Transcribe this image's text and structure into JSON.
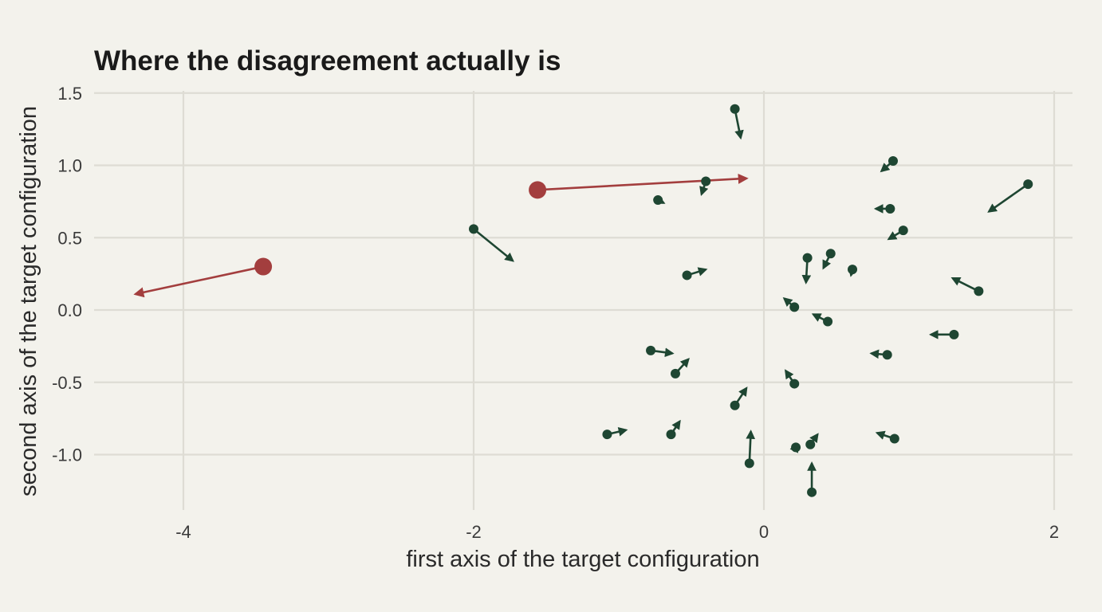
{
  "chart_data": {
    "type": "scatter",
    "title": "Where the disagreement actually is",
    "xlabel": "first axis of the target configuration",
    "ylabel": "second axis of the target configuration",
    "xlim": [
      -4.6,
      2.1
    ],
    "ylim": [
      -1.3,
      1.5
    ],
    "xticks": [
      -4,
      -2,
      0,
      2
    ],
    "xtick_labels": [
      "-4",
      "-2",
      "0",
      "2"
    ],
    "yticks": [
      1.5,
      1.0,
      0.5,
      0.0,
      -0.5,
      -1.0
    ],
    "ytick_labels": [
      "1.5",
      "1.0",
      "0.5",
      "0.0",
      "-0.5",
      "-1.0"
    ],
    "grid": true,
    "colors": {
      "normal": "#1e4632",
      "highlight": "#a33e3e",
      "grid": "#dedcd4",
      "background": "#f3f2ec"
    },
    "points": [
      {
        "x": -3.45,
        "y": 0.3,
        "x_end": -4.33,
        "y_end": 0.11,
        "highlight": true
      },
      {
        "x": -1.56,
        "y": 0.83,
        "x_end": -0.12,
        "y_end": 0.91,
        "highlight": true
      },
      {
        "x": -2.0,
        "y": 0.56,
        "x_end": -1.73,
        "y_end": 0.34,
        "highlight": false
      },
      {
        "x": -0.2,
        "y": 1.39,
        "x_end": -0.16,
        "y_end": 1.19,
        "highlight": false
      },
      {
        "x": -0.73,
        "y": 0.76,
        "x_end": -0.69,
        "y_end": 0.74,
        "highlight": false
      },
      {
        "x": -0.4,
        "y": 0.89,
        "x_end": -0.43,
        "y_end": 0.8,
        "highlight": false
      },
      {
        "x": 0.89,
        "y": 1.03,
        "x_end": 0.81,
        "y_end": 0.96,
        "highlight": false
      },
      {
        "x": 1.82,
        "y": 0.87,
        "x_end": 1.55,
        "y_end": 0.68,
        "highlight": false
      },
      {
        "x": 0.87,
        "y": 0.7,
        "x_end": 0.77,
        "y_end": 0.7,
        "highlight": false
      },
      {
        "x": 0.96,
        "y": 0.55,
        "x_end": 0.86,
        "y_end": 0.49,
        "highlight": false
      },
      {
        "x": -0.53,
        "y": 0.24,
        "x_end": -0.4,
        "y_end": 0.28,
        "highlight": false
      },
      {
        "x": 0.3,
        "y": 0.36,
        "x_end": 0.29,
        "y_end": 0.19,
        "highlight": false
      },
      {
        "x": 0.46,
        "y": 0.39,
        "x_end": 0.41,
        "y_end": 0.29,
        "highlight": false
      },
      {
        "x": 0.61,
        "y": 0.28,
        "x_end": 0.6,
        "y_end": 0.24,
        "highlight": false
      },
      {
        "x": 1.48,
        "y": 0.13,
        "x_end": 1.3,
        "y_end": 0.22,
        "highlight": false
      },
      {
        "x": 0.21,
        "y": 0.02,
        "x_end": 0.14,
        "y_end": 0.08,
        "highlight": false
      },
      {
        "x": 0.44,
        "y": -0.08,
        "x_end": 0.34,
        "y_end": -0.03,
        "highlight": false
      },
      {
        "x": 1.31,
        "y": -0.17,
        "x_end": 1.15,
        "y_end": -0.17,
        "highlight": false
      },
      {
        "x": -0.78,
        "y": -0.28,
        "x_end": -0.63,
        "y_end": -0.3,
        "highlight": false
      },
      {
        "x": 0.85,
        "y": -0.31,
        "x_end": 0.74,
        "y_end": -0.3,
        "highlight": false
      },
      {
        "x": -0.61,
        "y": -0.44,
        "x_end": -0.52,
        "y_end": -0.34,
        "highlight": false
      },
      {
        "x": 0.21,
        "y": -0.51,
        "x_end": 0.15,
        "y_end": -0.42,
        "highlight": false
      },
      {
        "x": -0.2,
        "y": -0.66,
        "x_end": -0.12,
        "y_end": -0.54,
        "highlight": false
      },
      {
        "x": -1.08,
        "y": -0.86,
        "x_end": -0.95,
        "y_end": -0.83,
        "highlight": false
      },
      {
        "x": -0.64,
        "y": -0.86,
        "x_end": -0.58,
        "y_end": -0.77,
        "highlight": false
      },
      {
        "x": -0.1,
        "y": -1.06,
        "x_end": -0.09,
        "y_end": -0.84,
        "highlight": false
      },
      {
        "x": 0.32,
        "y": -0.93,
        "x_end": 0.37,
        "y_end": -0.86,
        "highlight": false
      },
      {
        "x": 0.22,
        "y": -0.95,
        "x_end": 0.23,
        "y_end": -0.93,
        "highlight": false
      },
      {
        "x": 0.9,
        "y": -0.89,
        "x_end": 0.78,
        "y_end": -0.85,
        "highlight": false
      },
      {
        "x": 0.33,
        "y": -1.26,
        "x_end": 0.33,
        "y_end": -1.06,
        "highlight": false
      }
    ]
  }
}
